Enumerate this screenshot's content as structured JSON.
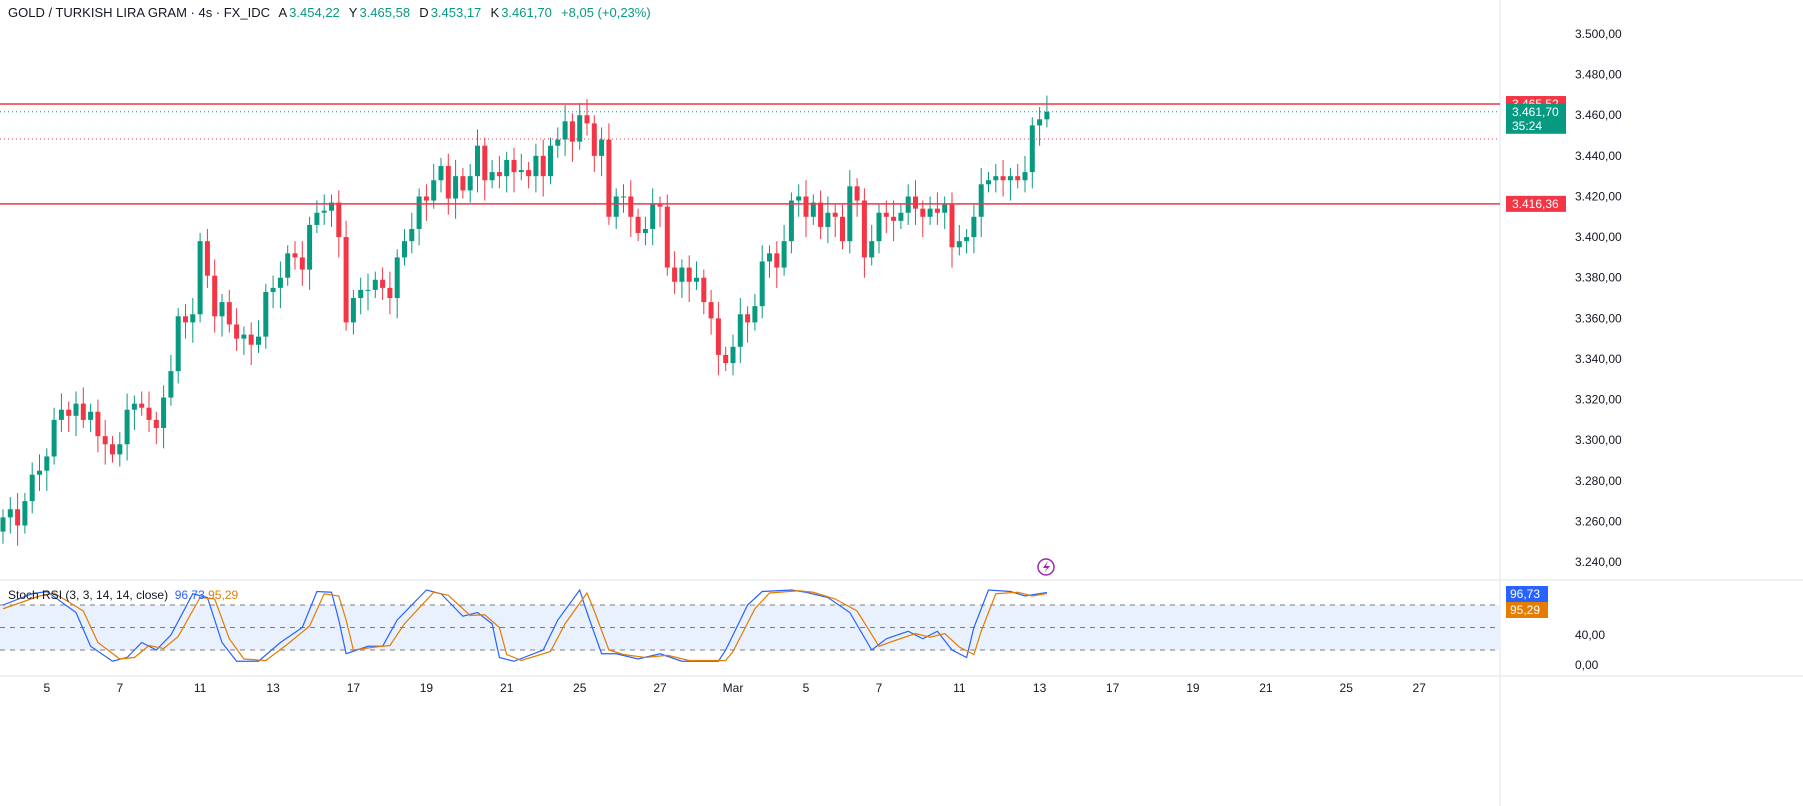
{
  "header": {
    "symbol": "GOLD / TURKISH LIRA GRAM · 4s · FX_IDC",
    "open_label": "A",
    "open": "3.454,22",
    "high_label": "Y",
    "high": "3.465,58",
    "low_label": "D",
    "low": "3.453,17",
    "close_label": "K",
    "close": "3.461,70",
    "change": "+8,05 (+0,23%)"
  },
  "colors": {
    "up": "#089981",
    "down": "#f23645",
    "level": "#f23645",
    "k": "#2962ff",
    "d": "#e57c00",
    "band": "#e8f1fd"
  },
  "chart_data": [
    {
      "type": "candlestick",
      "title": "GOLD / TURKISH LIRA GRAM · 4s · FX_IDC",
      "ylim": [
        3230,
        3510
      ],
      "yticks": [
        "3.500,00",
        "3.480,00",
        "3.460,00",
        "3.440,00",
        "3.420,00",
        "3.400,00",
        "3.380,00",
        "3.360,00",
        "3.340,00",
        "3.320,00",
        "3.300,00",
        "3.280,00",
        "3.260,00",
        "3.240,00"
      ],
      "ytick_values": [
        3500,
        3480,
        3460,
        3440,
        3420,
        3400,
        3380,
        3360,
        3340,
        3320,
        3300,
        3280,
        3260,
        3240
      ],
      "xticks": [
        {
          "label": "5",
          "index": 6
        },
        {
          "label": "7",
          "index": 16
        },
        {
          "label": "11",
          "index": 27
        },
        {
          "label": "13",
          "index": 37
        },
        {
          "label": "17",
          "index": 48
        },
        {
          "label": "19",
          "index": 58
        },
        {
          "label": "21",
          "index": 69
        },
        {
          "label": "25",
          "index": 79
        },
        {
          "label": "27",
          "index": 90
        },
        {
          "label": "Mar",
          "index": 100
        },
        {
          "label": "5",
          "index": 110
        },
        {
          "label": "7",
          "index": 120
        },
        {
          "label": "11",
          "index": 131
        },
        {
          "label": "13",
          "index": 142
        },
        {
          "label": "17",
          "index": 152
        },
        {
          "label": "19",
          "index": 163
        },
        {
          "label": "21",
          "index": 173
        },
        {
          "label": "25",
          "index": 184
        },
        {
          "label": "27",
          "index": 194
        }
      ],
      "first_open": 3255,
      "closes": [
        3262,
        3266,
        3258,
        3270,
        3283,
        3285,
        3292,
        3310,
        3315,
        3312,
        3318,
        3310,
        3314,
        3302,
        3298,
        3293,
        3298,
        3315,
        3318,
        3316,
        3310,
        3306,
        3321,
        3334,
        3361,
        3358,
        3362,
        3398,
        3381,
        3361,
        3368,
        3357,
        3350,
        3352,
        3347,
        3351,
        3373,
        3375,
        3380,
        3392,
        3390,
        3384,
        3406,
        3412,
        3413,
        3417,
        3400,
        3358,
        3370,
        3374,
        3374,
        3379,
        3375,
        3370,
        3390,
        3398,
        3404,
        3420,
        3418,
        3428,
        3435,
        3419,
        3430,
        3423,
        3430,
        3445,
        3428,
        3432,
        3430,
        3438,
        3432,
        3433,
        3430,
        3440,
        3430,
        3445,
        3448,
        3457,
        3447,
        3460,
        3456,
        3440,
        3448,
        3410,
        3420,
        3420,
        3410,
        3402,
        3404,
        3416,
        3415,
        3385,
        3378,
        3385,
        3378,
        3380,
        3368,
        3360,
        3342,
        3338,
        3346,
        3362,
        3358,
        3366,
        3388,
        3392,
        3385,
        3398,
        3418,
        3420,
        3410,
        3417,
        3405,
        3412,
        3410,
        3398,
        3425,
        3418,
        3390,
        3398,
        3412,
        3410,
        3408,
        3412,
        3420,
        3414,
        3410,
        3414,
        3412,
        3416,
        3395,
        3398,
        3400,
        3410,
        3426,
        3428,
        3430,
        3428,
        3430,
        3428,
        3432,
        3455,
        3458,
        3461.7
      ],
      "levels": [
        {
          "value": 3465.52,
          "label": "3.465,52"
        },
        {
          "value": 3416.36,
          "label": "3.416,36"
        }
      ],
      "last_price": {
        "value": 3461.7,
        "label": "3.461,70",
        "countdown": "35:24"
      },
      "prev_close_line": 3448.3
    },
    {
      "type": "line",
      "title": "Stoch RSI (3, 3, 14, 14, close)",
      "ylim": [
        0,
        100
      ],
      "band": [
        20,
        80
      ],
      "mid": 50,
      "yticks": [
        {
          "label": "40,00",
          "value": 40
        },
        {
          "label": "0,00",
          "value": 0
        }
      ],
      "series": [
        {
          "name": "K",
          "last": "96,73",
          "points": [
            [
              0,
              80
            ],
            [
              4,
              95
            ],
            [
              6,
              98
            ],
            [
              10,
              70
            ],
            [
              12,
              25
            ],
            [
              15,
              5
            ],
            [
              17,
              10
            ],
            [
              19,
              30
            ],
            [
              21,
              20
            ],
            [
              23,
              40
            ],
            [
              26,
              95
            ],
            [
              28,
              90
            ],
            [
              30,
              30
            ],
            [
              32,
              5
            ],
            [
              35,
              5
            ],
            [
              38,
              30
            ],
            [
              41,
              50
            ],
            [
              43,
              98
            ],
            [
              45,
              97
            ],
            [
              46,
              60
            ],
            [
              47,
              15
            ],
            [
              50,
              25
            ],
            [
              52,
              25
            ],
            [
              54,
              60
            ],
            [
              58,
              100
            ],
            [
              60,
              95
            ],
            [
              63,
              65
            ],
            [
              65,
              70
            ],
            [
              67,
              55
            ],
            [
              68,
              10
            ],
            [
              70,
              5
            ],
            [
              74,
              20
            ],
            [
              76,
              60
            ],
            [
              79,
              100
            ],
            [
              80,
              70
            ],
            [
              82,
              15
            ],
            [
              84,
              15
            ],
            [
              87,
              8
            ],
            [
              90,
              15
            ],
            [
              93,
              5
            ],
            [
              98,
              5
            ],
            [
              99,
              20
            ],
            [
              102,
              80
            ],
            [
              104,
              98
            ],
            [
              108,
              100
            ],
            [
              110,
              97
            ],
            [
              113,
              90
            ],
            [
              116,
              70
            ],
            [
              119,
              20
            ],
            [
              121,
              35
            ],
            [
              124,
              45
            ],
            [
              126,
              35
            ],
            [
              128,
              45
            ],
            [
              130,
              20
            ],
            [
              132,
              10
            ],
            [
              133,
              50
            ],
            [
              135,
              100
            ],
            [
              138,
              98
            ],
            [
              140,
              92
            ],
            [
              143,
              96.73
            ]
          ]
        },
        {
          "name": "D",
          "last": "95,29",
          "points": [
            [
              0,
              75
            ],
            [
              5,
              92
            ],
            [
              7,
              96
            ],
            [
              11,
              72
            ],
            [
              13,
              30
            ],
            [
              16,
              8
            ],
            [
              18,
              10
            ],
            [
              20,
              26
            ],
            [
              22,
              22
            ],
            [
              24,
              38
            ],
            [
              27,
              90
            ],
            [
              29,
              88
            ],
            [
              31,
              35
            ],
            [
              33,
              8
            ],
            [
              36,
              6
            ],
            [
              39,
              28
            ],
            [
              42,
              52
            ],
            [
              44,
              95
            ],
            [
              46,
              92
            ],
            [
              47,
              60
            ],
            [
              48,
              20
            ],
            [
              51,
              24
            ],
            [
              53,
              26
            ],
            [
              55,
              55
            ],
            [
              59,
              97
            ],
            [
              61,
              93
            ],
            [
              64,
              66
            ],
            [
              66,
              67
            ],
            [
              68,
              50
            ],
            [
              69,
              14
            ],
            [
              71,
              6
            ],
            [
              75,
              18
            ],
            [
              77,
              55
            ],
            [
              80,
              96
            ],
            [
              81,
              72
            ],
            [
              83,
              20
            ],
            [
              85,
              14
            ],
            [
              88,
              10
            ],
            [
              91,
              13
            ],
            [
              94,
              6
            ],
            [
              99,
              6
            ],
            [
              100,
              18
            ],
            [
              103,
              75
            ],
            [
              105,
              96
            ],
            [
              109,
              99
            ],
            [
              111,
              97
            ],
            [
              114,
              88
            ],
            [
              117,
              72
            ],
            [
              120,
              25
            ],
            [
              122,
              32
            ],
            [
              125,
              42
            ],
            [
              127,
              37
            ],
            [
              129,
              42
            ],
            [
              131,
              24
            ],
            [
              133,
              14
            ],
            [
              134,
              45
            ],
            [
              136,
              95
            ],
            [
              139,
              97
            ],
            [
              141,
              92
            ],
            [
              143,
              95.29
            ]
          ]
        }
      ]
    }
  ]
}
